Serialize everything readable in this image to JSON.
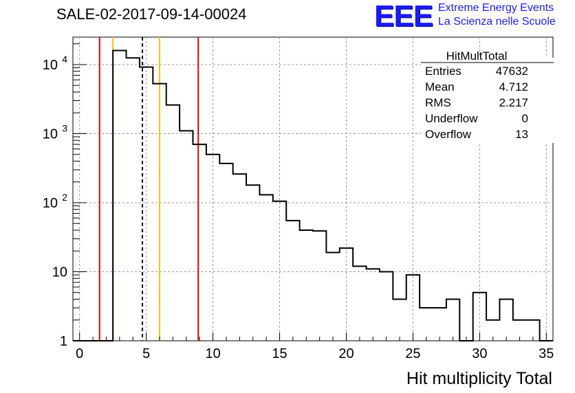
{
  "title": "SALE-02-2017-09-14-00024",
  "logo": {
    "mark": "EEE",
    "line1": "Extreme Energy Events",
    "line2": "La Scienza nelle Scuole",
    "color": "#1a1aff"
  },
  "stats": {
    "name": "HitMultTotal",
    "rows": [
      {
        "label": "Entries",
        "value": "47632"
      },
      {
        "label": "Mean",
        "value": "4.712"
      },
      {
        "label": "RMS",
        "value": "2.217"
      },
      {
        "label": "Underflow",
        "value": "0"
      },
      {
        "label": "Overflow",
        "value": "13"
      }
    ]
  },
  "chart_data": {
    "type": "bar",
    "histogram": true,
    "xlabel": "Hit multiplicity Total",
    "ylabel": "",
    "xlim": [
      -0.5,
      35.5
    ],
    "ylim": [
      1,
      25000
    ],
    "yscale": "log",
    "grid": true,
    "bin_width": 1,
    "x_ticks": [
      0,
      5,
      10,
      15,
      20,
      25,
      30,
      35
    ],
    "y_ticks": [
      {
        "value": 1,
        "label": "1"
      },
      {
        "value": 10,
        "label": "10"
      },
      {
        "value": 100,
        "label": "10",
        "sup": "2"
      },
      {
        "value": 1000,
        "label": "10",
        "sup": "3"
      },
      {
        "value": 10000,
        "label": "10",
        "sup": "4"
      }
    ],
    "bins": [
      {
        "x": 0,
        "count": 0
      },
      {
        "x": 1,
        "count": 0
      },
      {
        "x": 2,
        "count": 0
      },
      {
        "x": 3,
        "count": 16000
      },
      {
        "x": 4,
        "count": 12500
      },
      {
        "x": 5,
        "count": 9200
      },
      {
        "x": 6,
        "count": 5300
      },
      {
        "x": 7,
        "count": 2600
      },
      {
        "x": 8,
        "count": 1100
      },
      {
        "x": 9,
        "count": 700
      },
      {
        "x": 10,
        "count": 500
      },
      {
        "x": 11,
        "count": 370
      },
      {
        "x": 12,
        "count": 260
      },
      {
        "x": 13,
        "count": 180
      },
      {
        "x": 14,
        "count": 130
      },
      {
        "x": 15,
        "count": 105
      },
      {
        "x": 16,
        "count": 55
      },
      {
        "x": 17,
        "count": 40
      },
      {
        "x": 18,
        "count": 39
      },
      {
        "x": 19,
        "count": 19
      },
      {
        "x": 20,
        "count": 22
      },
      {
        "x": 21,
        "count": 12
      },
      {
        "x": 22,
        "count": 11
      },
      {
        "x": 23,
        "count": 10
      },
      {
        "x": 24,
        "count": 4
      },
      {
        "x": 25,
        "count": 9
      },
      {
        "x": 26,
        "count": 3
      },
      {
        "x": 27,
        "count": 3
      },
      {
        "x": 28,
        "count": 4
      },
      {
        "x": 29,
        "count": 0
      },
      {
        "x": 30,
        "count": 5
      },
      {
        "x": 31,
        "count": 2
      },
      {
        "x": 32,
        "count": 4
      },
      {
        "x": 33,
        "count": 2
      },
      {
        "x": 34,
        "count": 2
      },
      {
        "x": 35,
        "count": 0
      }
    ],
    "vertical_lines": [
      {
        "x": 1.5,
        "color": "#e00000",
        "style": "solid"
      },
      {
        "x": 2.5,
        "color": "#ffc000",
        "style": "solid"
      },
      {
        "x": 4.712,
        "color": "#000000",
        "style": "dashed"
      },
      {
        "x": 6.0,
        "color": "#ffc000",
        "style": "solid"
      },
      {
        "x": 8.9,
        "color": "#e00000",
        "style": "solid"
      }
    ]
  }
}
